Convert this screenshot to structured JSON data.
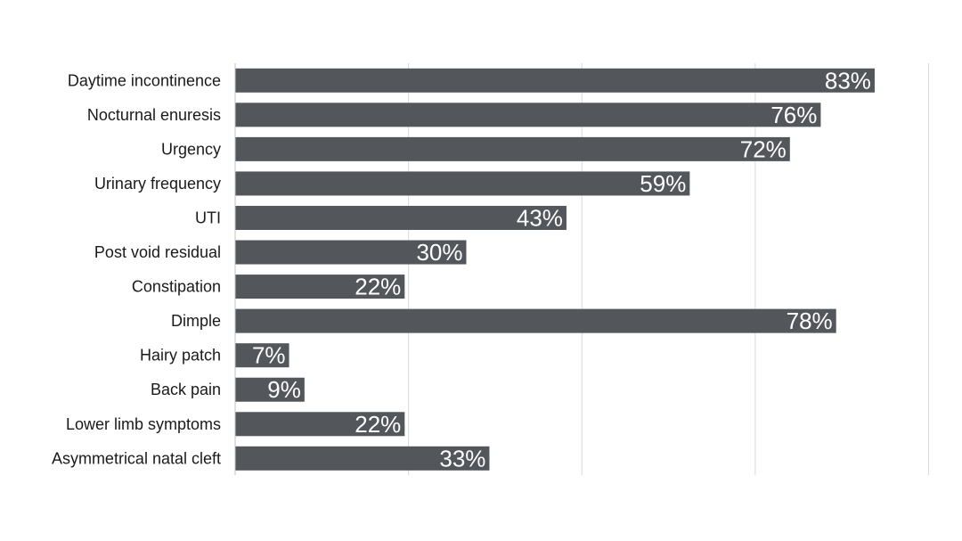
{
  "chart_data": {
    "type": "bar",
    "orientation": "horizontal",
    "categories": [
      "Daytime incontinence",
      "Nocturnal enuresis",
      "Urgency",
      "Urinary frequency",
      "UTI",
      "Post void residual",
      "Constipation",
      "Dimple",
      "Hairy patch",
      "Back pain",
      "Lower limb symptoms",
      "Asymmetrical natal cleft"
    ],
    "values": [
      83,
      76,
      72,
      59,
      43,
      30,
      22,
      78,
      7,
      9,
      22,
      33
    ],
    "value_labels": [
      "83%",
      "76%",
      "72%",
      "59%",
      "43%",
      "30%",
      "22%",
      "78%",
      "7%",
      "9%",
      "22%",
      "33%"
    ],
    "title": "",
    "xlabel": "",
    "ylabel": "",
    "xlim": [
      0,
      90
    ],
    "grid": true,
    "legend": "none",
    "bar_color": "#53575c",
    "label_color": "#ffffff"
  }
}
